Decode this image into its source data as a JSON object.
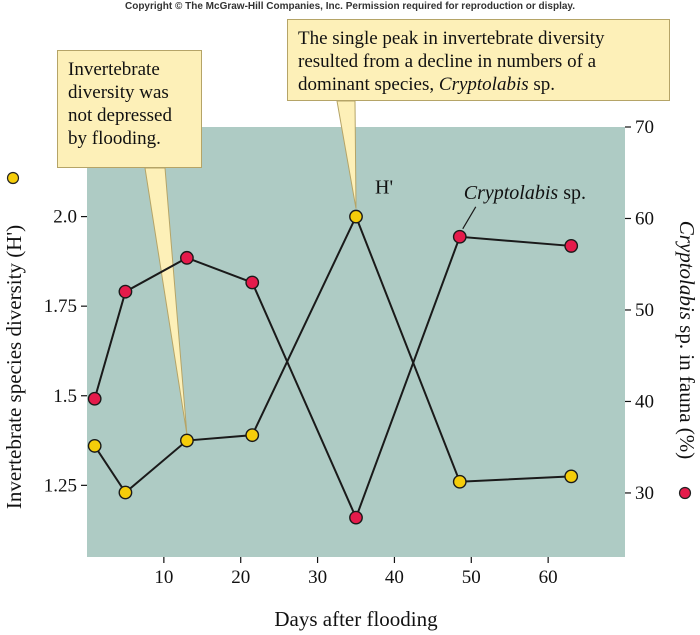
{
  "copyright": "Copyright © The McGraw-Hill Companies, Inc. Permission required for reproduction or display.",
  "chart_data": {
    "type": "line",
    "xlabel": "Days after flooding",
    "ylabel_left": "Invertebrate species diversity (H')",
    "ylabel_right_italic": "Cryptolabis",
    "ylabel_right_rest": " sp. in fauna (%)",
    "xlim": [
      0,
      70
    ],
    "ylim_left": [
      1.05,
      2.25
    ],
    "ylim_right": [
      23,
      70
    ],
    "x_ticks": [
      10,
      20,
      30,
      40,
      50,
      60
    ],
    "y_left_ticks": [
      "1.25",
      "1.5",
      "1.75",
      "2.0"
    ],
    "y_right_ticks": [
      30,
      40,
      50,
      60,
      70
    ],
    "series": [
      {
        "name": "H'",
        "axis": "left",
        "color": "#f5cd0a",
        "points": [
          [
            1,
            1.36
          ],
          [
            5,
            1.23
          ],
          [
            13,
            1.375
          ],
          [
            21.5,
            1.39
          ],
          [
            35,
            2.0
          ],
          [
            48.5,
            1.26
          ],
          [
            63,
            1.275
          ]
        ]
      },
      {
        "name": "Cryptolabis sp.",
        "name_italic": "Cryptolabis",
        "name_rest": " sp.",
        "axis": "right",
        "color": "#e51b4b",
        "points": [
          [
            1,
            40.3
          ],
          [
            5,
            52
          ],
          [
            13,
            55.7
          ],
          [
            21.5,
            53
          ],
          [
            35,
            27.3
          ],
          [
            48.5,
            58
          ],
          [
            63,
            57
          ]
        ]
      }
    ],
    "plot_bg": "#aecbc4",
    "grid": false
  },
  "annotations": {
    "callout_1": {
      "text": "Invertebrate diversity was not depressed by flooding.",
      "points_to": [
        13,
        1.375
      ]
    },
    "callout_2": {
      "text_before": "The single peak in invertebrate diversity resulted from a decline in numbers of a dominant species, ",
      "text_italic": "Cryptolabis",
      "text_after": " sp.",
      "points_to": [
        35,
        2.0
      ]
    }
  }
}
